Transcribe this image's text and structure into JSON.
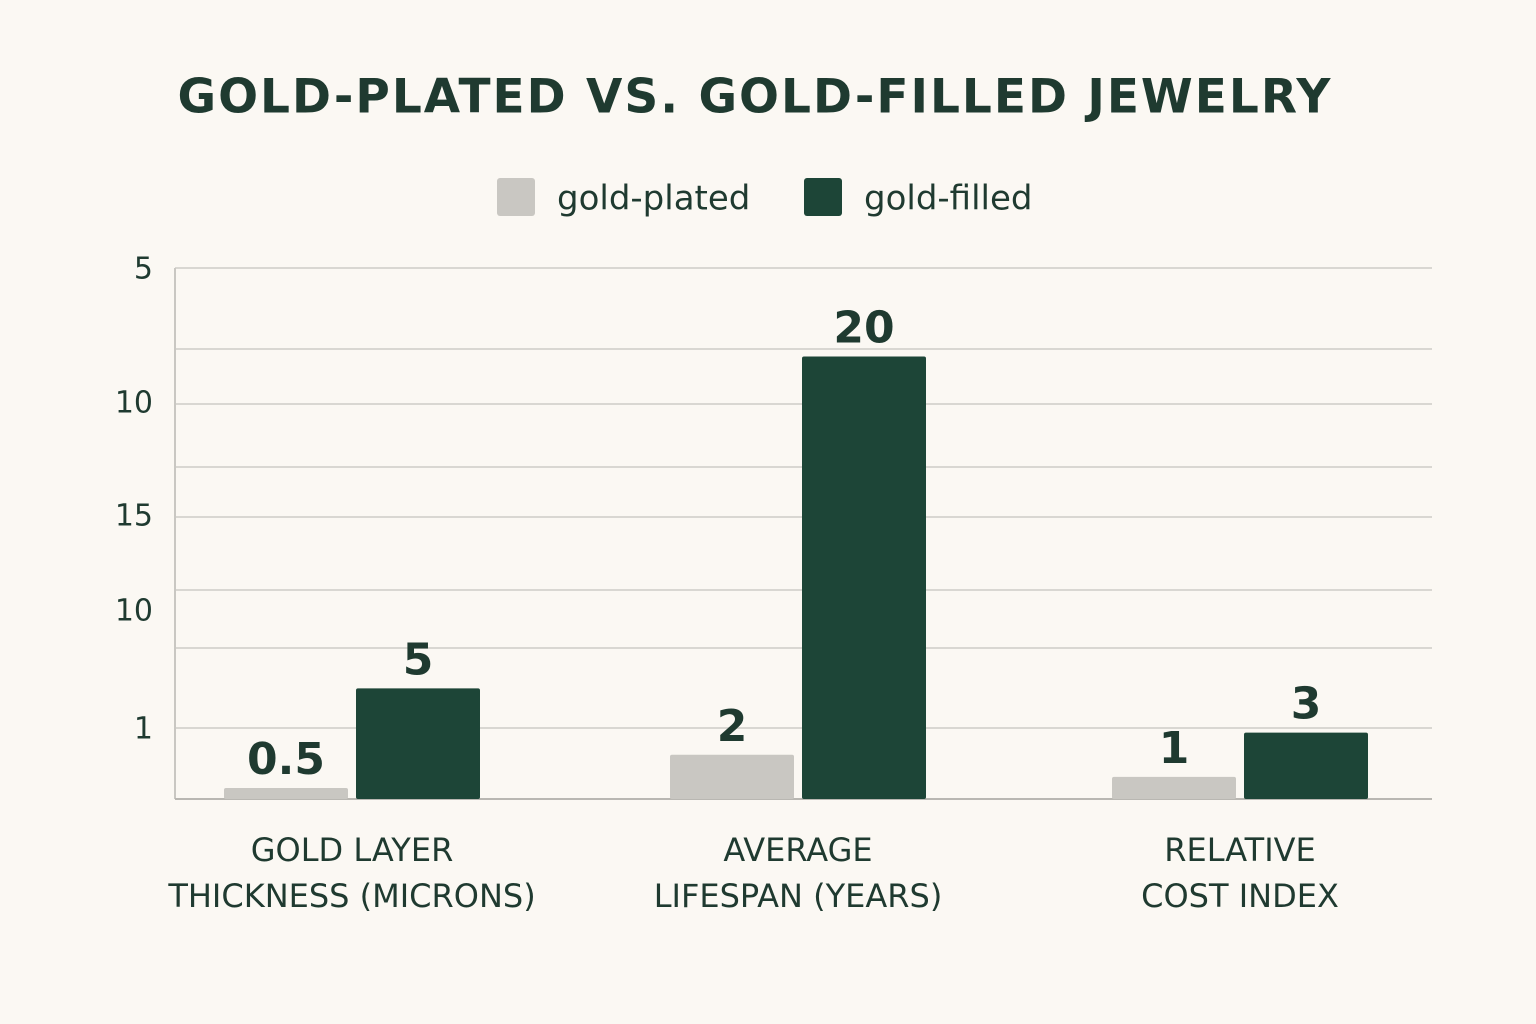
{
  "chart_data": {
    "type": "bar",
    "title": "GOLD-PLATED VS. GOLD-FILLED JEWELRY",
    "categories": [
      [
        "GOLD LAYER",
        "THICKNESS (MICRONS)"
      ],
      [
        "AVERAGE",
        "LIFESPAN (YEARS)"
      ],
      [
        "RELATIVE",
        "COST INDEX"
      ]
    ],
    "series": [
      {
        "name": "gold-plated",
        "color": "#c9c7c2",
        "values": [
          0.5,
          2,
          1
        ]
      },
      {
        "name": "gold-filled",
        "color": "#1d4537",
        "values": [
          5,
          20,
          3
        ]
      }
    ],
    "y_axis_labels": [
      "5",
      "10",
      "15",
      "10",
      "1"
    ],
    "ylim": [
      0,
      24
    ],
    "grid": true,
    "legend": "top"
  }
}
